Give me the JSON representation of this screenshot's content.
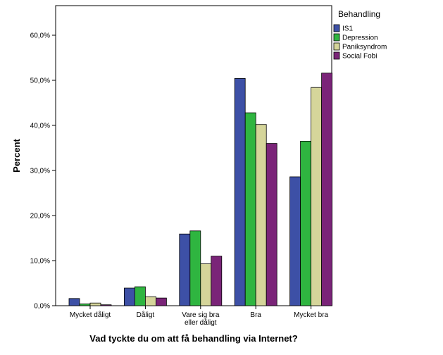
{
  "chart_data": {
    "type": "bar",
    "xlabel": "Vad tyckte du om att få behandling via Internet?",
    "ylabel": "Percent",
    "ylim": [
      0,
      65
    ],
    "yticks": [
      "0,0%",
      "10,0%",
      "20,0%",
      "30,0%",
      "40,0%",
      "50,0%",
      "60,0%"
    ],
    "categories": [
      "Mycket dåligt",
      "Dåligt",
      "Vare sig bra eller dåligt",
      "Bra",
      "Mycket bra"
    ],
    "category_lines": [
      [
        "Mycket dåligt"
      ],
      [
        "Dåligt"
      ],
      [
        "Vare sig bra",
        "eller dåligt"
      ],
      [
        "Bra"
      ],
      [
        "Mycket bra"
      ]
    ],
    "legend_title": "Behandling",
    "legend_position": "right",
    "grid": false,
    "series": [
      {
        "name": "IS1",
        "color": "#3d50a6",
        "values": [
          1.6,
          3.9,
          15.9,
          50.4,
          28.6
        ]
      },
      {
        "name": "Depression",
        "color": "#2fb540",
        "values": [
          0.4,
          4.2,
          16.6,
          42.8,
          36.5
        ]
      },
      {
        "name": "Paniksyndrom",
        "color": "#d5d59a",
        "values": [
          0.6,
          2.0,
          9.3,
          40.2,
          48.4
        ]
      },
      {
        "name": "Social Fobi",
        "color": "#7a2478",
        "values": [
          0.2,
          1.7,
          11.0,
          36.0,
          51.6
        ]
      }
    ]
  }
}
